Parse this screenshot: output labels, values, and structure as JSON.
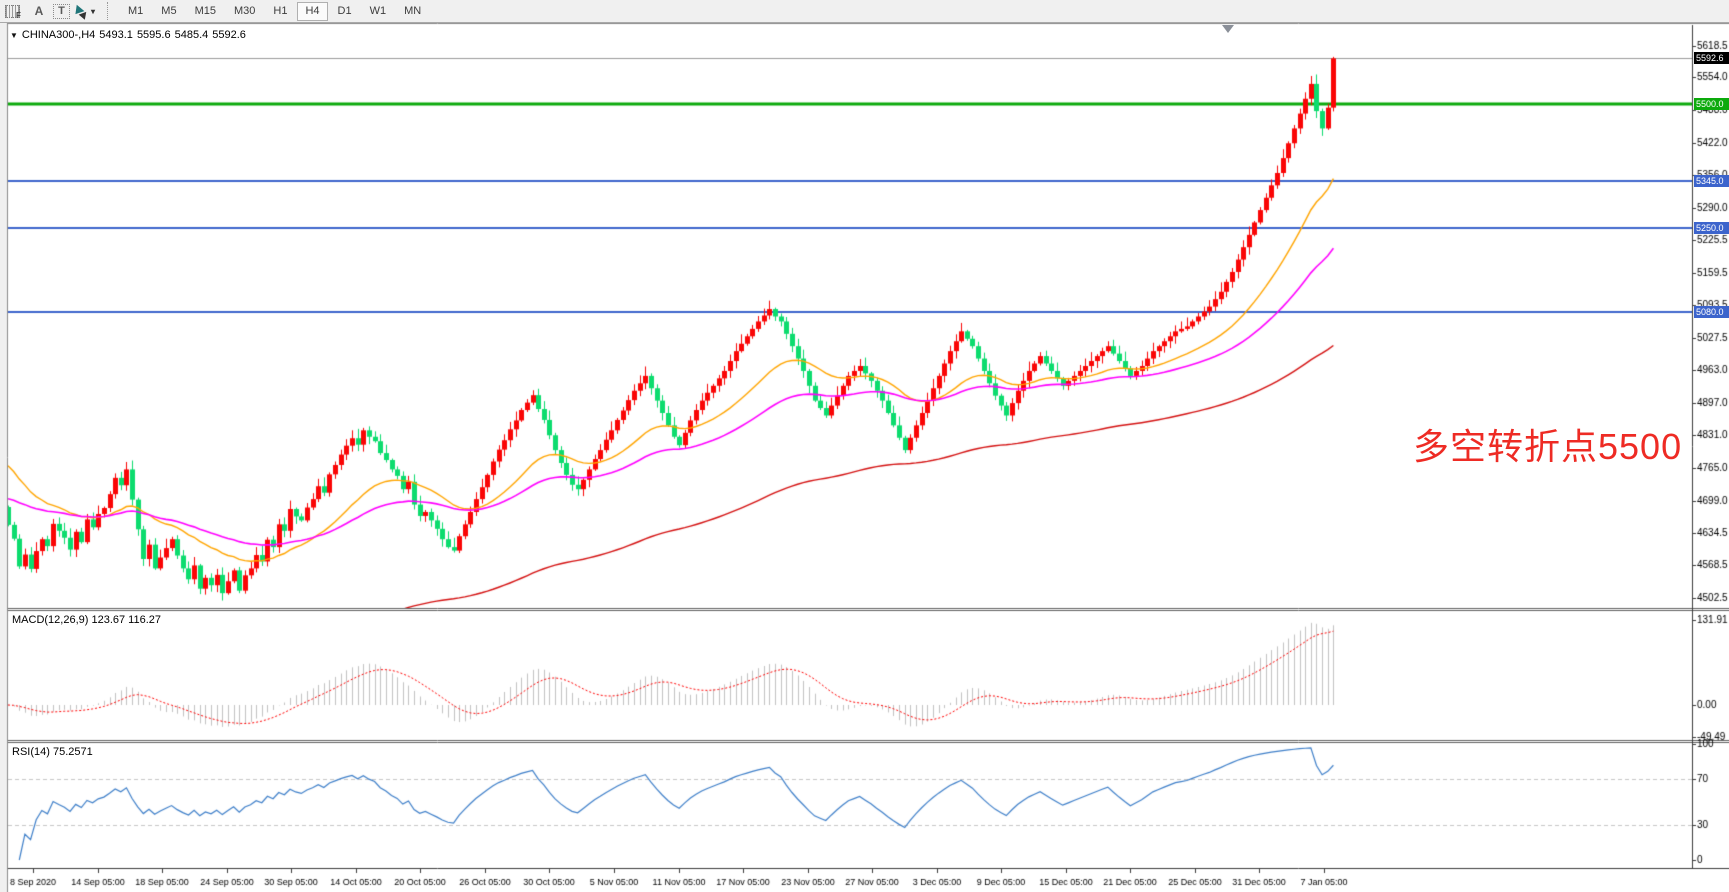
{
  "toolbar": {
    "icons": {
      "grid_label": "F",
      "a_label": "A",
      "t_label": "T"
    },
    "timeframes": [
      "M1",
      "M5",
      "M15",
      "M30",
      "H1",
      "H4",
      "D1",
      "W1",
      "MN"
    ],
    "active_timeframe": "H4"
  },
  "header": {
    "symbol_label": "CHINA300-,H4",
    "open": "5493.1",
    "high": "5595.6",
    "low": "5485.4",
    "close": "5592.6"
  },
  "annotation": {
    "text": "多空转折点5500",
    "color": "#ee2b24"
  },
  "chart_data": {
    "type": "candlestick",
    "symbol": "CHINA300-",
    "timeframe": "H4",
    "last_bar_ohlc": {
      "open": 5493.1,
      "high": 5595.6,
      "low": 5485.4,
      "close": 5592.6
    },
    "price_axis": {
      "ticks": [
        "5618.5",
        "5554.0",
        "5488.0",
        "5422.0",
        "5356.0",
        "5290.0",
        "5225.5",
        "5159.5",
        "5093.5",
        "5027.5",
        "4963.0",
        "4897.0",
        "4831.0",
        "4765.0",
        "4699.0",
        "4634.5",
        "4568.5",
        "4502.5"
      ]
    },
    "x_labels": [
      "8 Sep 2020",
      "14 Sep 05:00",
      "18 Sep 05:00",
      "24 Sep 05:00",
      "30 Sep 05:00",
      "14 Oct 05:00",
      "20 Oct 05:00",
      "26 Oct 05:00",
      "30 Oct 05:00",
      "5 Nov 05:00",
      "11 Nov 05:00",
      "17 Nov 05:00",
      "23 Nov 05:00",
      "27 Nov 05:00",
      "3 Dec 05:00",
      "9 Dec 05:00",
      "15 Dec 05:00",
      "21 Dec 05:00",
      "25 Dec 05:00",
      "31 Dec 05:00",
      "7 Jan 05:00"
    ],
    "first_open": 4686,
    "closes": [
      4650,
      4622,
      4566,
      4590,
      4561,
      4597,
      4621,
      4607,
      4652,
      4638,
      4624,
      4600,
      4636,
      4615,
      4661,
      4645,
      4672,
      4684,
      4712,
      4745,
      4730,
      4762,
      4701,
      4641,
      4581,
      4610,
      4562,
      4584,
      4603,
      4621,
      4588,
      4562,
      4540,
      4568,
      4521,
      4543,
      4528,
      4549,
      4512,
      4536,
      4558,
      4517,
      4548,
      4562,
      4589,
      4576,
      4620,
      4605,
      4651,
      4638,
      4682,
      4667,
      4659,
      4685,
      4702,
      4728,
      4715,
      4752,
      4771,
      4792,
      4810,
      4825,
      4812,
      4841,
      4828,
      4819,
      4795,
      4781,
      4762,
      4749,
      4722,
      4737,
      4691,
      4668,
      4676,
      4659,
      4642,
      4621,
      4605,
      4598,
      4627,
      4651,
      4676,
      4702,
      4726,
      4751,
      4778,
      4802,
      4821,
      4843,
      4861,
      4882,
      4897,
      4912,
      4884,
      4862,
      4831,
      4801,
      4775,
      4751,
      4731,
      4722,
      4741,
      4762,
      4783,
      4801,
      4822,
      4841,
      4862,
      4881,
      4902,
      4921,
      4936,
      4951,
      4926,
      4901,
      4876,
      4851,
      4828,
      4811,
      4836,
      4861,
      4882,
      4901,
      4917,
      4931,
      4946,
      4961,
      4981,
      5001,
      5016,
      5031,
      5046,
      5061,
      5073,
      5086,
      5071,
      5061,
      5036,
      5011,
      4986,
      4961,
      4931,
      4901,
      4886,
      4871,
      4891,
      4911,
      4931,
      4951,
      4961,
      4971,
      4956,
      4941,
      4921,
      4901,
      4876,
      4851,
      4826,
      4801,
      4826,
      4851,
      4876,
      4901,
      4926,
      4951,
      4976,
      5001,
      5021,
      5041,
      5026,
      5011,
      4986,
      4961,
      4936,
      4911,
      4891,
      4871,
      4896,
      4921,
      4941,
      4961,
      4976,
      4991,
      4976,
      4961,
      4946,
      4931,
      4941,
      4951,
      4961,
      4971,
      4981,
      4991,
      5001,
      5011,
      4996,
      4981,
      4966,
      4951,
      4961,
      4971,
      4986,
      5001,
      5011,
      5021,
      5031,
      5041,
      5046,
      5051,
      5061,
      5071,
      5081,
      5091,
      5106,
      5121,
      5141,
      5161,
      5186,
      5211,
      5236,
      5261,
      5286,
      5311,
      5336,
      5361,
      5391,
      5421,
      5451,
      5481,
      5511,
      5541,
      5486,
      5451,
      5493,
      5592.6
    ],
    "colors": {
      "bull": "#fa0505",
      "bear": "#0cdc6e",
      "ma_fast": "#ffa500",
      "ma_medium": "#ff00ff",
      "ma_slow": "#d41111",
      "macd_histogram": "#c2c2c2",
      "macd_signal": "#ff0000",
      "rsi_line": "#3e7fc9"
    },
    "moving_averages": [
      {
        "name": "fast",
        "period": 24,
        "color": "#ffa500",
        "seed": 4780
      },
      {
        "name": "medium",
        "period": 52,
        "color": "#ff00ff",
        "seed": 4705
      },
      {
        "name": "slow",
        "period": 140,
        "color": "#d41111",
        "seed": 4150
      }
    ],
    "levels": [
      {
        "label": "5592.6",
        "price": 5592.6,
        "kind": "current-price",
        "line_color": "#9a9a9a",
        "tag_bg": "#000000",
        "thickness": 1
      },
      {
        "label": "5500.0",
        "price": 5500.0,
        "kind": "resistance",
        "line_color": "#0caa0c",
        "tag_bg": "#0caa0c",
        "thickness": 3
      },
      {
        "label": "5345.0",
        "price": 5345.0,
        "kind": "support",
        "line_color": "#3c64cc",
        "tag_bg": "#3c64cc",
        "thickness": 2
      },
      {
        "label": "5250.0",
        "price": 5250.0,
        "kind": "support",
        "line_color": "#3c64cc",
        "tag_bg": "#3c64cc",
        "thickness": 2
      },
      {
        "label": "5080.0",
        "price": 5080.0,
        "kind": "support",
        "line_color": "#3c64cc",
        "tag_bg": "#3c64cc",
        "thickness": 2
      }
    ],
    "macd": {
      "label": "MACD(12,26,9) 123.67 116.27",
      "fast": 12,
      "slow": 26,
      "signal": 9,
      "macd_value": 123.67,
      "signal_value": 116.27,
      "axis_ticks": [
        "131.91",
        "0.00",
        "-49.49"
      ],
      "axis_values": [
        131.91,
        0.0,
        -49.49
      ]
    },
    "rsi": {
      "label": "RSI(14) 75.2571",
      "period": 14,
      "value": 75.2571,
      "axis_ticks": [
        "100",
        "70",
        "30",
        "0"
      ],
      "axis_values": [
        100,
        70,
        30,
        0
      ],
      "guide_levels": [
        70,
        30
      ]
    }
  }
}
